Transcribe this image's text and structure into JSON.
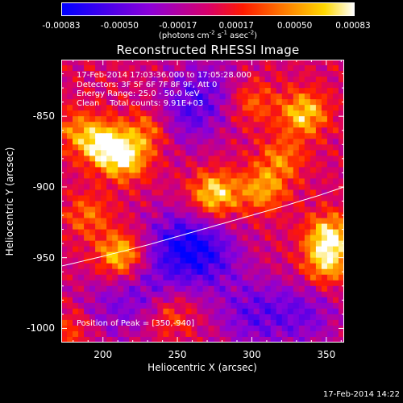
{
  "chart_data": {
    "type": "heatmap",
    "title": "Reconstructed RHESSI Image",
    "xlabel": "Heliocentric X (arcsec)",
    "ylabel": "Heliocentric Y (arcsec)",
    "xlim": [
      172,
      362
    ],
    "ylim": [
      -1010,
      -810
    ],
    "x_ticks": [
      200,
      250,
      300,
      350
    ],
    "y_ticks": [
      -850,
      -900,
      -950,
      -1000
    ],
    "colorbar": {
      "colormap": "rainbow/blue-violet-red-yellow-white",
      "min": -0.00083,
      "max": 0.00083,
      "tick_labels": [
        "-0.00083",
        "-0.00050",
        "-0.00017",
        "0.00017",
        "0.00050",
        "0.00083"
      ],
      "units_parts": [
        "(photons cm",
        "-2",
        " s",
        "-1",
        " asec",
        "-2",
        ")"
      ]
    },
    "info_lines": [
      "17-Feb-2014 17:03:36.000 to 17:05:28.000",
      "Detectors: 3F 5F 6F 7F 8F 9F, Att 0",
      "Energy Range: 25.0 - 50.0 keV",
      "Clean    Total counts: 9.91E+03"
    ],
    "peak_label": "Position of Peak = [350,-940]",
    "peak_position": [
      350,
      -940
    ],
    "limb_curve": [
      [
        172,
        -956
      ],
      [
        200,
        -949
      ],
      [
        230,
        -941
      ],
      [
        260,
        -932
      ],
      [
        290,
        -923
      ],
      [
        320,
        -914
      ],
      [
        345,
        -906
      ],
      [
        362,
        -900
      ]
    ],
    "bright_sources": [
      [
        200,
        -870,
        1.0
      ],
      [
        215,
        -880,
        0.9
      ],
      [
        212,
        -948,
        0.95
      ],
      [
        275,
        -905,
        1.0
      ],
      [
        335,
        -848,
        0.9
      ],
      [
        352,
        -935,
        1.0
      ],
      [
        350,
        -955,
        0.8
      ],
      [
        307,
        -902,
        0.7
      ],
      [
        230,
        -860,
        0.6
      ],
      [
        182,
        -860,
        0.5
      ],
      [
        190,
        -920,
        0.5
      ],
      [
        245,
        -990,
        0.5
      ],
      [
        320,
        -880,
        0.55
      ],
      [
        180,
        -1000,
        0.45
      ],
      [
        300,
        -840,
        0.5
      ]
    ],
    "dark_regions": [
      [
        250,
        -940,
        1.0
      ],
      [
        270,
        -950,
        0.9
      ],
      [
        255,
        -850,
        0.7
      ],
      [
        300,
        -990,
        0.8
      ],
      [
        230,
        -975,
        0.6
      ],
      [
        270,
        -830,
        0.6
      ],
      [
        335,
        -990,
        0.7
      ],
      [
        200,
        -990,
        0.5
      ]
    ]
  },
  "timestamp": "17-Feb-2014 14:22"
}
